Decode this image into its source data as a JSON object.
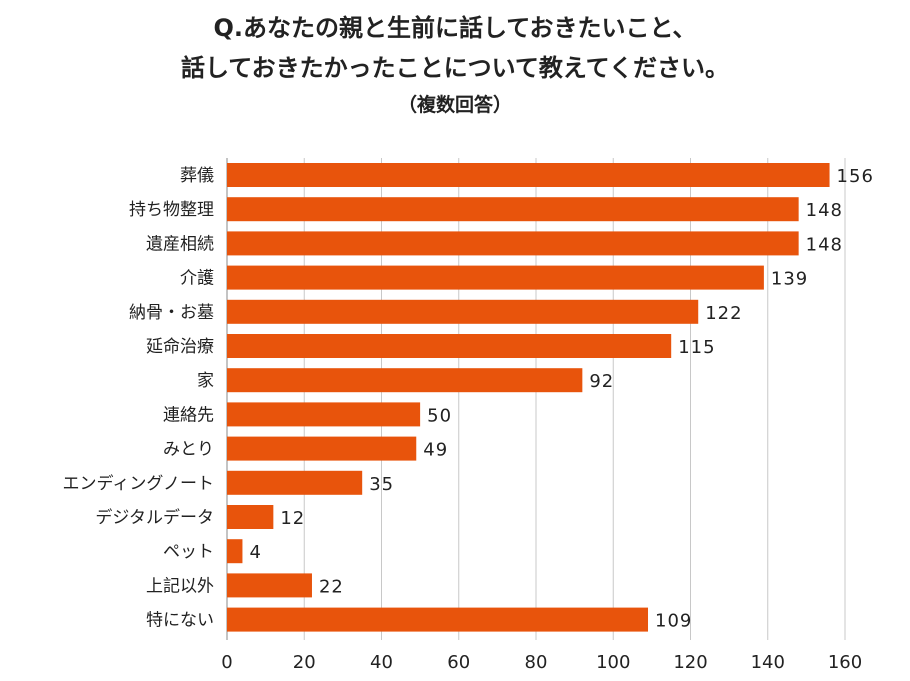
{
  "chart_data": {
    "type": "bar",
    "orientation": "horizontal",
    "title_lines": [
      "Q.あなたの親と生前に話しておきたいこと、",
      "話しておきたかったことについて教えてください。",
      "（複数回答）"
    ],
    "categories": [
      "葬儀",
      "持ち物整理",
      "遺産相続",
      "介護",
      "納骨・お墓",
      "延命治療",
      "家",
      "連絡先",
      "みとり",
      "エンディングノート",
      "デジタルデータ",
      "ペット",
      "上記以外",
      "特にない"
    ],
    "values": [
      156,
      148,
      148,
      139,
      122,
      115,
      92,
      50,
      49,
      35,
      12,
      4,
      22,
      109
    ],
    "xlim": [
      0,
      160
    ],
    "xticks": [
      0,
      20,
      40,
      60,
      80,
      100,
      120,
      140,
      160
    ],
    "grid": "vertical",
    "bar_color": "#e8540c",
    "grid_color": "#c8c8c8"
  }
}
